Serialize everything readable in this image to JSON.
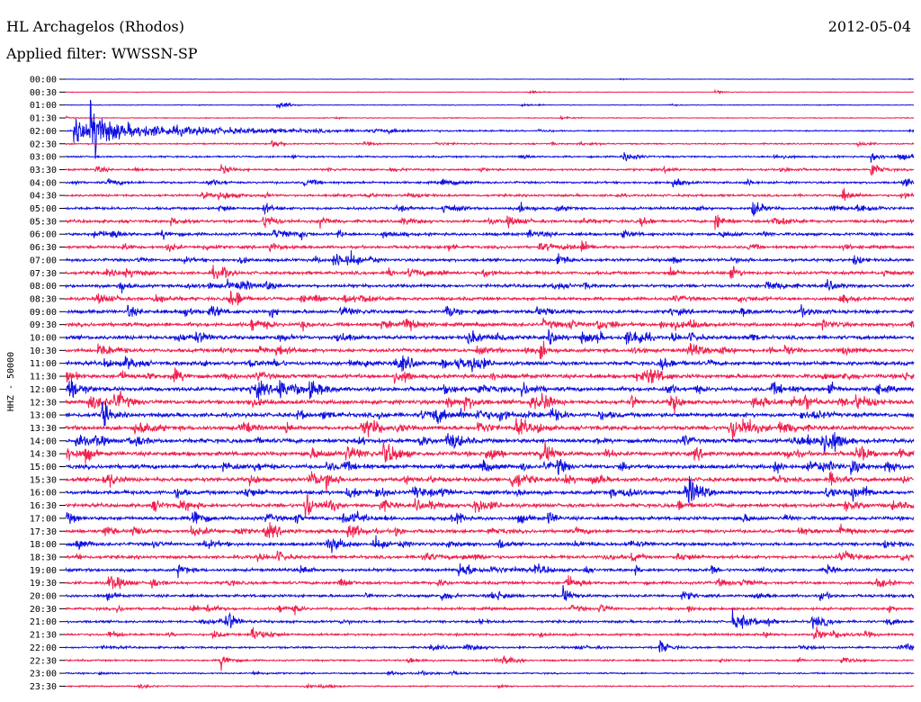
{
  "header": {
    "station": "HL Archagelos (Rhodos)",
    "filter": "Applied filter: WWSSN-SP",
    "date": "2012-05-04"
  },
  "chart_data": {
    "type": "line",
    "title": "HL Archagelos (Rhodos)",
    "date": "2012-05-04",
    "filter": "WWSSN-SP",
    "ylabel": "HHZ - 50000",
    "row_interval_minutes": 30,
    "row_labels": [
      "00:00",
      "00:30",
      "01:00",
      "01:30",
      "02:00",
      "02:30",
      "03:00",
      "03:30",
      "04:00",
      "04:30",
      "05:00",
      "05:30",
      "06:00",
      "06:30",
      "07:00",
      "07:30",
      "08:00",
      "08:30",
      "09:00",
      "09:30",
      "10:00",
      "10:30",
      "11:00",
      "11:30",
      "12:00",
      "12:30",
      "13:00",
      "13:30",
      "14:00",
      "14:30",
      "15:00",
      "15:30",
      "16:00",
      "16:30",
      "17:00",
      "17:30",
      "18:00",
      "18:30",
      "19:00",
      "19:30",
      "20:00",
      "20:30",
      "21:00",
      "21:30",
      "22:00",
      "22:30",
      "23:00",
      "23:30"
    ],
    "colors": [
      "#1010e0",
      "#f0204e"
    ],
    "noise_level": [
      0.3,
      0.4,
      0.5,
      0.6,
      0.8,
      1.0,
      1.2,
      1.4,
      1.5,
      1.6,
      1.8,
      2.0,
      2.0,
      2.0,
      2.1,
      2.2,
      2.2,
      2.2,
      2.4,
      2.6,
      2.6,
      2.6,
      2.7,
      2.8,
      2.9,
      3.0,
      3.0,
      3.0,
      3.0,
      3.0,
      2.9,
      2.8,
      2.8,
      2.6,
      2.5,
      2.4,
      2.3,
      2.2,
      2.1,
      2.0,
      1.9,
      1.8,
      1.7,
      1.6,
      1.4,
      1.2,
      1.0,
      0.9
    ],
    "events": [
      {
        "row": 1,
        "minute": 23,
        "amp": 3
      },
      {
        "row": 2,
        "minute": 7.5,
        "amp": 5
      },
      {
        "row": 4,
        "minute": 0.3,
        "amp": 16,
        "duration_min": 4
      },
      {
        "row": 4,
        "minute": 0.9,
        "amp": 55
      },
      {
        "row": 5,
        "minute": 7.3,
        "amp": 8
      },
      {
        "row": 6,
        "minute": 28.5,
        "amp": 10
      },
      {
        "row": 7,
        "minute": 5.5,
        "amp": 10
      },
      {
        "row": 7,
        "minute": 28.5,
        "amp": 14
      },
      {
        "row": 8,
        "minute": 21.5,
        "amp": 10
      },
      {
        "row": 9,
        "minute": 27.5,
        "amp": 12
      },
      {
        "row": 10,
        "minute": 7.0,
        "amp": 10
      },
      {
        "row": 10,
        "minute": 24.3,
        "amp": 18
      },
      {
        "row": 11,
        "minute": 9.0,
        "amp": 12
      },
      {
        "row": 11,
        "minute": 23.0,
        "amp": 14
      },
      {
        "row": 12,
        "minute": 1.6,
        "amp": 10
      },
      {
        "row": 14,
        "minute": 17.4,
        "amp": 14
      },
      {
        "row": 15,
        "minute": 23.5,
        "amp": 12
      },
      {
        "row": 17,
        "minute": 5.8,
        "amp": 14
      },
      {
        "row": 18,
        "minute": 2.2,
        "amp": 10
      },
      {
        "row": 19,
        "minute": 17.8,
        "amp": 10
      },
      {
        "row": 20,
        "minute": 15.2,
        "amp": 10
      },
      {
        "row": 21,
        "minute": 16.8,
        "amp": 14
      },
      {
        "row": 22,
        "minute": 14.3,
        "amp": 12
      },
      {
        "row": 24,
        "minute": 7.5,
        "amp": 14
      },
      {
        "row": 25,
        "minute": 16.8,
        "amp": 16
      },
      {
        "row": 26,
        "minute": 1.3,
        "amp": 14
      },
      {
        "row": 27,
        "minute": 23.6,
        "amp": 12
      },
      {
        "row": 28,
        "minute": 12.5,
        "amp": 10
      },
      {
        "row": 29,
        "minute": 16.8,
        "amp": 10
      },
      {
        "row": 30,
        "minute": 29.0,
        "amp": 14
      },
      {
        "row": 31,
        "minute": 9.2,
        "amp": 12
      },
      {
        "row": 32,
        "minute": 27.8,
        "amp": 12
      },
      {
        "row": 33,
        "minute": 8.5,
        "amp": 18
      },
      {
        "row": 34,
        "minute": 4.5,
        "amp": 14
      },
      {
        "row": 35,
        "minute": 6.0,
        "amp": 10
      },
      {
        "row": 36,
        "minute": 10.9,
        "amp": 14
      },
      {
        "row": 37,
        "minute": 7.5,
        "amp": 10
      },
      {
        "row": 38,
        "minute": 4.0,
        "amp": 10
      },
      {
        "row": 39,
        "minute": 3.0,
        "amp": 8
      },
      {
        "row": 40,
        "minute": 17.6,
        "amp": 14
      },
      {
        "row": 41,
        "minute": 5.0,
        "amp": 8
      },
      {
        "row": 42,
        "minute": 5.8,
        "amp": 10
      },
      {
        "row": 42,
        "minute": 23.6,
        "amp": 14
      },
      {
        "row": 42,
        "minute": 26.4,
        "amp": 14
      },
      {
        "row": 43,
        "minute": 6.6,
        "amp": 18
      },
      {
        "row": 43,
        "minute": 26.5,
        "amp": 12
      },
      {
        "row": 44,
        "minute": 21.0,
        "amp": 12
      },
      {
        "row": 45,
        "minute": 5.5,
        "amp": 14
      }
    ]
  }
}
